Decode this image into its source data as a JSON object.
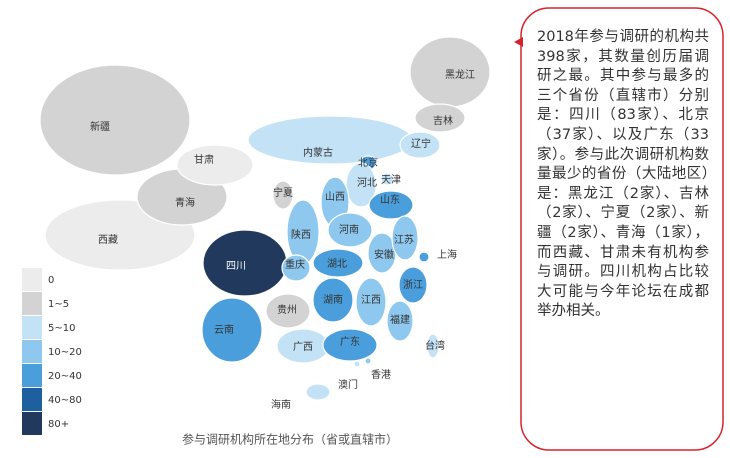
{
  "map": {
    "caption": "参与调研机构所在地分布（省或直辖市）",
    "legend": [
      {
        "label": "0",
        "color": "#ececec"
      },
      {
        "label": "1~5",
        "color": "#d3d3d3"
      },
      {
        "label": "5~10",
        "color": "#c4e2f5"
      },
      {
        "label": "10~20",
        "color": "#8ec8ee"
      },
      {
        "label": "20~40",
        "color": "#4a9edc"
      },
      {
        "label": "40~80",
        "color": "#1d5f9f"
      },
      {
        "label": "80+",
        "color": "#20395c"
      }
    ],
    "provinces": [
      {
        "name": "新疆",
        "color": "#d3d3d3"
      },
      {
        "name": "西藏",
        "color": "#ececec"
      },
      {
        "name": "青海",
        "color": "#d3d3d3"
      },
      {
        "name": "甘肃",
        "color": "#ececec"
      },
      {
        "name": "内蒙古",
        "color": "#c4e2f5"
      },
      {
        "name": "黑龙江",
        "color": "#d3d3d3"
      },
      {
        "name": "吉林",
        "color": "#d3d3d3"
      },
      {
        "name": "辽宁",
        "color": "#c4e2f5"
      },
      {
        "name": "北京",
        "color": "#4a9edc"
      },
      {
        "name": "天津",
        "color": "#c4e2f5"
      },
      {
        "name": "河北",
        "color": "#c4e2f5"
      },
      {
        "name": "山西",
        "color": "#8ec8ee"
      },
      {
        "name": "宁夏",
        "color": "#d3d3d3"
      },
      {
        "name": "陕西",
        "color": "#8ec8ee"
      },
      {
        "name": "河南",
        "color": "#8ec8ee"
      },
      {
        "name": "山东",
        "color": "#4a9edc"
      },
      {
        "name": "四川",
        "color": "#20395c"
      },
      {
        "name": "重庆",
        "color": "#8ec8ee"
      },
      {
        "name": "湖北",
        "color": "#4a9edc"
      },
      {
        "name": "安徽",
        "color": "#8ec8ee"
      },
      {
        "name": "江苏",
        "color": "#8ec8ee"
      },
      {
        "name": "上海",
        "color": "#4a9edc"
      },
      {
        "name": "浙江",
        "color": "#4a9edc"
      },
      {
        "name": "湖南",
        "color": "#4a9edc"
      },
      {
        "name": "江西",
        "color": "#8ec8ee"
      },
      {
        "name": "贵州",
        "color": "#d3d3d3"
      },
      {
        "name": "云南",
        "color": "#4a9edc"
      },
      {
        "name": "广西",
        "color": "#c4e2f5"
      },
      {
        "name": "广东",
        "color": "#4a9edc"
      },
      {
        "name": "福建",
        "color": "#8ec8ee"
      },
      {
        "name": "台湾",
        "color": "#c4e2f5"
      },
      {
        "name": "香港",
        "color": "#8ec8ee"
      },
      {
        "name": "澳门",
        "color": "#c4e2f5"
      },
      {
        "name": "海南",
        "color": "#c4e2f5"
      }
    ]
  },
  "note": {
    "text": "2018年参与调研的机构共398家，其数量创历届调研之最。其中参与最多的三个省份（直辖市）分别是：四川（83家）、北京（37家）、以及广东（33家）。参与此次调研机构数量最少的省份（大陆地区）是：黑龙江（2家）、吉林（2家）、宁夏（2家）、新疆（2家）、青海（1家），而西藏、甘肃未有机构参与调研。四川机构占比较大可能与今年论坛在成都举办相关。"
  }
}
